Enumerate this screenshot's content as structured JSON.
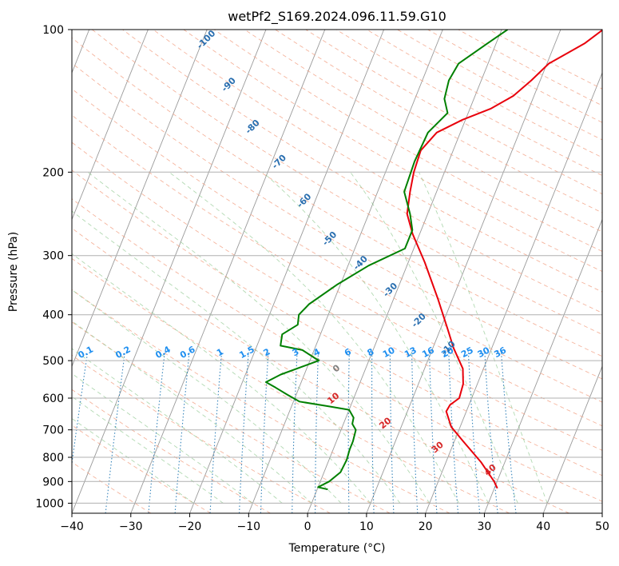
{
  "chart_data": {
    "type": "line",
    "title": "wetPf2_S169.2024.096.11.59.G10",
    "xlabel": "Temperature (°C)",
    "ylabel": "Pressure (hPa)",
    "xlim": [
      -40,
      50
    ],
    "ylim": [
      1050,
      100
    ],
    "y_scale": "log",
    "grid": true,
    "xticks": [
      -40,
      -30,
      -20,
      -10,
      0,
      10,
      20,
      30,
      40,
      50
    ],
    "yticks": [
      100,
      200,
      300,
      400,
      500,
      600,
      700,
      800,
      900,
      1000
    ],
    "series": [
      {
        "name": "",
        "color": "#e8000b",
        "points": [
          [
            30.5,
            930
          ],
          [
            29.5,
            900
          ],
          [
            26.0,
            820
          ],
          [
            21.5,
            740
          ],
          [
            18.5,
            690
          ],
          [
            16.6,
            640
          ],
          [
            16.8,
            620
          ],
          [
            17.9,
            600
          ],
          [
            17.6,
            560
          ],
          [
            16.5,
            520
          ],
          [
            13.5,
            470
          ],
          [
            11.3,
            430
          ],
          [
            7.5,
            370
          ],
          [
            2.8,
            310
          ],
          [
            -1.2,
            270
          ],
          [
            -3.5,
            245
          ],
          [
            -4.5,
            220
          ],
          [
            -5.2,
            200
          ],
          [
            -5.5,
            180
          ],
          [
            -4.0,
            165
          ],
          [
            -0.5,
            155
          ],
          [
            3.5,
            147
          ],
          [
            6.5,
            138
          ],
          [
            8.5,
            128
          ],
          [
            10.3,
            118
          ],
          [
            12.8,
            112
          ],
          [
            15.0,
            107
          ],
          [
            17.2,
            100
          ]
        ]
      },
      {
        "name": "",
        "color": "#008000",
        "points": [
          [
            1.8,
            935
          ],
          [
            0.0,
            925
          ],
          [
            1.5,
            900
          ],
          [
            2.8,
            860
          ],
          [
            3.0,
            810
          ],
          [
            2.8,
            770
          ],
          [
            2.8,
            740
          ],
          [
            2.5,
            700
          ],
          [
            1.5,
            680
          ],
          [
            1.3,
            660
          ],
          [
            0.0,
            635
          ],
          [
            -3.5,
            625
          ],
          [
            -9.0,
            610
          ],
          [
            -11.5,
            590
          ],
          [
            -14.0,
            570
          ],
          [
            -16.0,
            555
          ],
          [
            -14.0,
            535
          ],
          [
            -8.5,
            500
          ],
          [
            -12.0,
            475
          ],
          [
            -16.0,
            465
          ],
          [
            -16.5,
            440
          ],
          [
            -14.5,
            420
          ],
          [
            -15.0,
            400
          ],
          [
            -14.0,
            380
          ],
          [
            -10.5,
            345
          ],
          [
            -6.5,
            315
          ],
          [
            -1.5,
            290
          ],
          [
            -1.5,
            265
          ],
          [
            -3.0,
            245
          ],
          [
            -5.5,
            220
          ],
          [
            -5.8,
            190
          ],
          [
            -5.5,
            165
          ],
          [
            -3.5,
            150
          ],
          [
            -5.0,
            140
          ],
          [
            -5.5,
            128
          ],
          [
            -5.0,
            118
          ],
          [
            -1.5,
            107
          ],
          [
            1.0,
            100
          ]
        ]
      }
    ],
    "mixing_ratio_labels": [
      "0.1",
      "0.2",
      "0.4",
      "0.6",
      "1",
      "1.5",
      "2",
      "3",
      "4",
      "6",
      "8",
      "10",
      "13",
      "16",
      "20",
      "25",
      "30",
      "36"
    ],
    "mixing_ratio_values": [
      0.1,
      0.2,
      0.4,
      0.6,
      1,
      1.5,
      2,
      3,
      4,
      6,
      8,
      10,
      13,
      16,
      20,
      25,
      30,
      36
    ],
    "wet_bulb_labels": [
      "-100",
      "-90",
      "-80",
      "-70",
      "-60",
      "-50",
      "-40",
      "-30",
      "-20",
      "-10"
    ],
    "wet_bulb_values": [
      -100,
      -90,
      -80,
      -70,
      -60,
      -50,
      -40,
      -30,
      -20,
      -10
    ],
    "wet_bulb_label_pressures": [
      106,
      132,
      162,
      192,
      232,
      279,
      314,
      358,
      415,
      475
    ],
    "dry_adiabat_labels": [
      "0",
      "10",
      "20",
      "30",
      "40"
    ],
    "dry_adiabat_values": [
      0,
      10,
      20,
      30,
      40
    ],
    "dry_adiabat_label_pressures": [
      525,
      607,
      685,
      770,
      860
    ]
  }
}
